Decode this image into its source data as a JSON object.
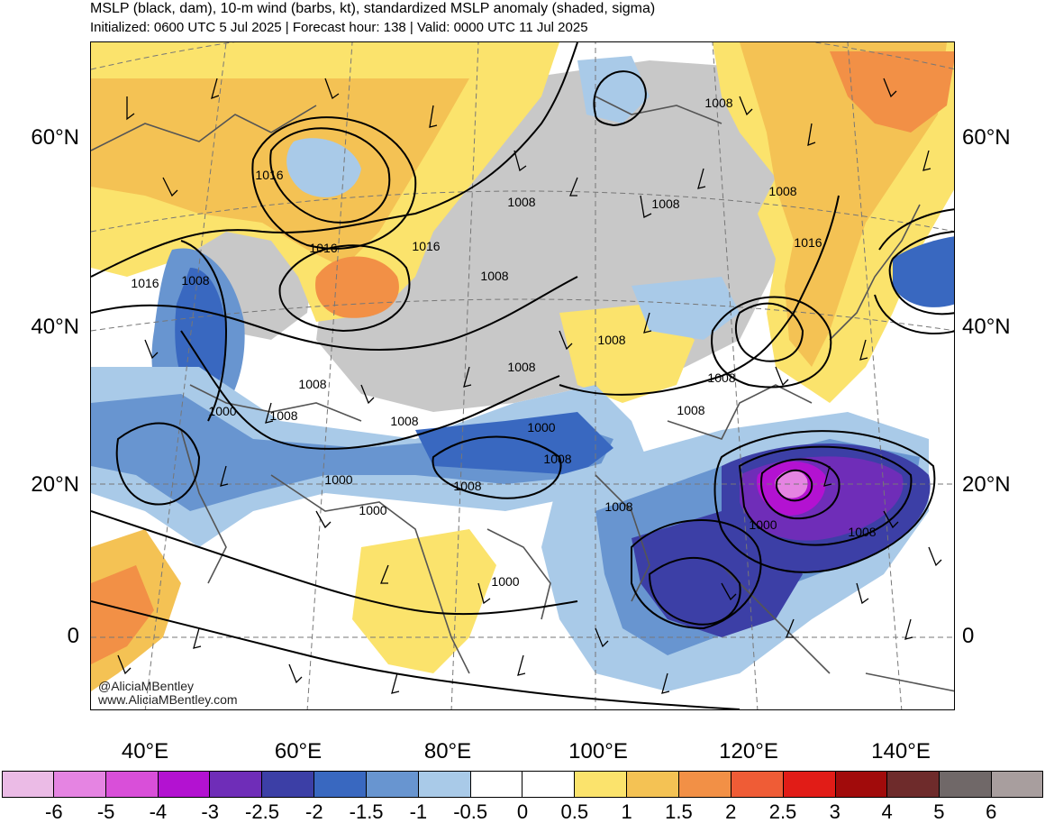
{
  "title": "MSLP (black, dam), 10-m wind (barbs, kt), standardized MSLP anomaly (shaded, sigma)",
  "subtitle": "Initialized: 0600 UTC 5 Jul 2025 | Forecast hour: 138 | Valid: 0000 UTC 11 Jul 2025",
  "credit": [
    "@AliciaMBentley",
    "www.AliciaMBentley.com"
  ],
  "lat_labels": [
    "60°N",
    "40°N",
    "20°N",
    "0"
  ],
  "lon_labels": [
    "40°E",
    "60°E",
    "80°E",
    "100°E",
    "120°E",
    "140°E"
  ],
  "isobar_labels": [
    "1016",
    "1016",
    "1016",
    "1016",
    "1016",
    "1008",
    "1008",
    "1008",
    "1008",
    "1008",
    "1008",
    "1008",
    "1008",
    "1008",
    "1008",
    "1008",
    "1008",
    "1008",
    "1008",
    "1008",
    "1008",
    "1008",
    "1000",
    "1000",
    "1000",
    "1000",
    "1000",
    "1000"
  ],
  "colorbar": {
    "colors": [
      "#ebbbe6",
      "#e584e2",
      "#d94fd9",
      "#b312d1",
      "#6f2db8",
      "#3c3fa6",
      "#3968c0",
      "#6895d0",
      "#a9cae8",
      "#ffffff",
      "#ffffff",
      "#fbe36c",
      "#f4c254",
      "#f29046",
      "#ef5c36",
      "#e11c17",
      "#a10b0b",
      "#6e2b2b",
      "#706868",
      "#a89e9e"
    ],
    "ticks": [
      "-6",
      "-5",
      "-4",
      "-3",
      "-2.5",
      "-2",
      "-1.5",
      "-1",
      "-0.5",
      "0",
      "0.5",
      "1",
      "1.5",
      "2",
      "2.5",
      "3",
      "4",
      "5",
      "6"
    ]
  }
}
